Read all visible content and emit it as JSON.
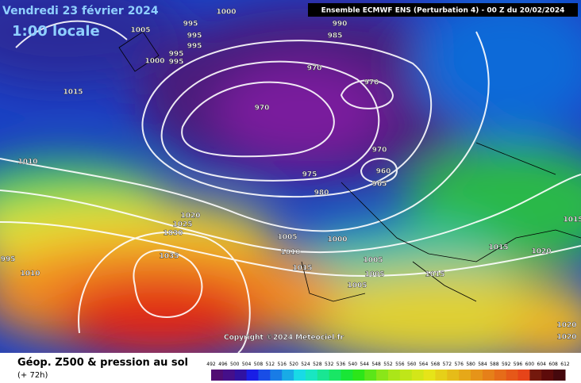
{
  "header": {
    "date": "Vendredi 23 février 2024",
    "time": "1:00 locale",
    "model": "Ensemble ECMWF ENS  (Perturbation 4)  -  00 Z du 20/02/2024"
  },
  "copyright": "Copyright ©2024 Meteociel.fr",
  "legend": {
    "title": "Géop. Z500 & pression au sol",
    "lead": "(+ 72h)",
    "scale": [
      "492",
      "496",
      "500",
      "504",
      "508",
      "512",
      "516",
      "520",
      "524",
      "528",
      "532",
      "536",
      "540",
      "544",
      "548",
      "552",
      "556",
      "560",
      "564",
      "568",
      "572",
      "576",
      "580",
      "584",
      "588",
      "592",
      "596",
      "600",
      "604",
      "608",
      "612"
    ]
  },
  "isobars": [
    "1000",
    "995",
    "1005",
    "995",
    "995",
    "995",
    "995",
    "1000",
    "1015",
    "990",
    "985",
    "970",
    "970",
    "970",
    "970",
    "960",
    "965",
    "975",
    "980",
    "1010",
    "1020",
    "1025",
    "1030",
    "1035",
    "995",
    "1005",
    "1000",
    "1010",
    "1015",
    "1005",
    "1005",
    "1005",
    "1015",
    "1015",
    "1020",
    "1015",
    "1020",
    "1020",
    "1010"
  ]
}
